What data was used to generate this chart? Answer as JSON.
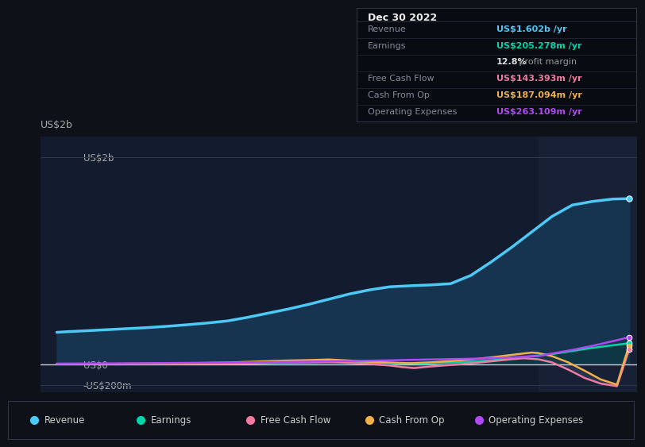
{
  "bg_color": "#0e1117",
  "plot_bg_color": "#131c2e",
  "highlight_bg_color": "#182035",
  "ylabel_top": "US$2b",
  "ylabel_zero": "US$0",
  "ylabel_neg": "-US$200m",
  "ylim": [
    -270000000,
    2200000000
  ],
  "yticks": [
    -200000000,
    0,
    2000000000
  ],
  "ytick_labels": [
    "-US$200m",
    "US$0",
    "US$2b"
  ],
  "xmin": 2015.7,
  "xmax": 2023.05,
  "highlight_x_start": 2021.83,
  "xticks": [
    2017,
    2018,
    2019,
    2020,
    2021,
    2022
  ],
  "info_box": {
    "date": "Dec 30 2022",
    "rows": [
      {
        "label": "Revenue",
        "value": "US$1.602b /yr",
        "value_color": "#4dc9f6"
      },
      {
        "label": "Earnings",
        "value": "US$205.278m /yr",
        "value_color": "#00d4aa"
      },
      {
        "label": "",
        "value": "12.8% profit margin",
        "value_color": "#bbbbbb",
        "bold_prefix": "12.8%"
      },
      {
        "label": "Free Cash Flow",
        "value": "US$143.393m /yr",
        "value_color": "#f07aa0"
      },
      {
        "label": "Cash From Op",
        "value": "US$187.094m /yr",
        "value_color": "#f0b04a"
      },
      {
        "label": "Operating Expenses",
        "value": "US$263.109m /yr",
        "value_color": "#b04af0"
      }
    ]
  },
  "legend": [
    {
      "label": "Revenue",
      "color": "#4dc9f6"
    },
    {
      "label": "Earnings",
      "color": "#00d4aa"
    },
    {
      "label": "Free Cash Flow",
      "color": "#f07aa0"
    },
    {
      "label": "Cash From Op",
      "color": "#f0b04a"
    },
    {
      "label": "Operating Expenses",
      "color": "#b04af0"
    }
  ],
  "revenue": {
    "x": [
      2015.9,
      2016.0,
      2016.25,
      2016.5,
      2016.75,
      2017.0,
      2017.25,
      2017.5,
      2017.75,
      2018.0,
      2018.25,
      2018.5,
      2018.75,
      2019.0,
      2019.25,
      2019.5,
      2019.75,
      2020.0,
      2020.25,
      2020.5,
      2020.75,
      2021.0,
      2021.25,
      2021.5,
      2021.75,
      2022.0,
      2022.25,
      2022.5,
      2022.75,
      2022.95
    ],
    "y": [
      310000000,
      315000000,
      325000000,
      335000000,
      345000000,
      355000000,
      368000000,
      383000000,
      400000000,
      420000000,
      455000000,
      495000000,
      535000000,
      580000000,
      630000000,
      680000000,
      720000000,
      750000000,
      760000000,
      768000000,
      780000000,
      860000000,
      990000000,
      1130000000,
      1280000000,
      1430000000,
      1540000000,
      1575000000,
      1598000000,
      1602000000
    ],
    "color": "#4dc9f6",
    "fill_color": "#163350",
    "linewidth": 2.5
  },
  "earnings": {
    "x": [
      2015.9,
      2016.5,
      2017.0,
      2017.5,
      2018.0,
      2018.5,
      2019.0,
      2019.25,
      2019.5,
      2019.75,
      2020.0,
      2020.25,
      2020.5,
      2020.75,
      2021.0,
      2021.25,
      2021.5,
      2021.75,
      2022.0,
      2022.25,
      2022.5,
      2022.75,
      2022.95
    ],
    "y": [
      5000000,
      5000000,
      8000000,
      10000000,
      12000000,
      15000000,
      18000000,
      20000000,
      22000000,
      20000000,
      15000000,
      10000000,
      12000000,
      18000000,
      25000000,
      40000000,
      60000000,
      80000000,
      100000000,
      130000000,
      160000000,
      185000000,
      205278000
    ],
    "color": "#00d4aa",
    "linewidth": 1.8
  },
  "free_cash_flow": {
    "x": [
      2015.9,
      2016.5,
      2017.0,
      2017.5,
      2018.0,
      2018.25,
      2018.5,
      2018.75,
      2019.0,
      2019.25,
      2019.5,
      2019.75,
      2020.0,
      2020.15,
      2020.3,
      2020.5,
      2020.75,
      2021.0,
      2021.25,
      2021.5,
      2021.65,
      2021.83,
      2022.0,
      2022.2,
      2022.4,
      2022.6,
      2022.8,
      2022.95
    ],
    "y": [
      2000000,
      2000000,
      4000000,
      6000000,
      8000000,
      10000000,
      15000000,
      20000000,
      22000000,
      25000000,
      15000000,
      5000000,
      -10000000,
      -25000000,
      -35000000,
      -20000000,
      -5000000,
      10000000,
      30000000,
      50000000,
      60000000,
      50000000,
      20000000,
      -50000000,
      -130000000,
      -185000000,
      -210000000,
      143393000
    ],
    "color": "#f07aa0",
    "linewidth": 1.8
  },
  "cash_from_op": {
    "x": [
      2015.9,
      2016.5,
      2017.0,
      2017.5,
      2018.0,
      2018.25,
      2018.5,
      2018.75,
      2019.0,
      2019.25,
      2019.5,
      2019.75,
      2020.0,
      2020.25,
      2020.5,
      2020.75,
      2021.0,
      2021.25,
      2021.5,
      2021.75,
      2021.83,
      2022.0,
      2022.2,
      2022.4,
      2022.6,
      2022.8,
      2022.95
    ],
    "y": [
      5000000,
      5000000,
      8000000,
      12000000,
      18000000,
      25000000,
      32000000,
      38000000,
      42000000,
      48000000,
      38000000,
      25000000,
      18000000,
      12000000,
      20000000,
      32000000,
      48000000,
      68000000,
      92000000,
      115000000,
      110000000,
      80000000,
      20000000,
      -60000000,
      -145000000,
      -195000000,
      187094000
    ],
    "color": "#f0b04a",
    "linewidth": 1.8
  },
  "operating_expenses": {
    "x": [
      2015.9,
      2016.5,
      2017.0,
      2017.5,
      2018.0,
      2018.5,
      2019.0,
      2019.5,
      2020.0,
      2020.5,
      2021.0,
      2021.25,
      2021.5,
      2021.75,
      2021.83,
      2022.0,
      2022.25,
      2022.5,
      2022.75,
      2022.95
    ],
    "y": [
      8000000,
      10000000,
      12000000,
      15000000,
      18000000,
      22000000,
      27000000,
      33000000,
      40000000,
      48000000,
      55000000,
      60000000,
      68000000,
      78000000,
      80000000,
      105000000,
      140000000,
      180000000,
      225000000,
      263109000
    ],
    "color": "#b04af0",
    "linewidth": 1.8
  }
}
